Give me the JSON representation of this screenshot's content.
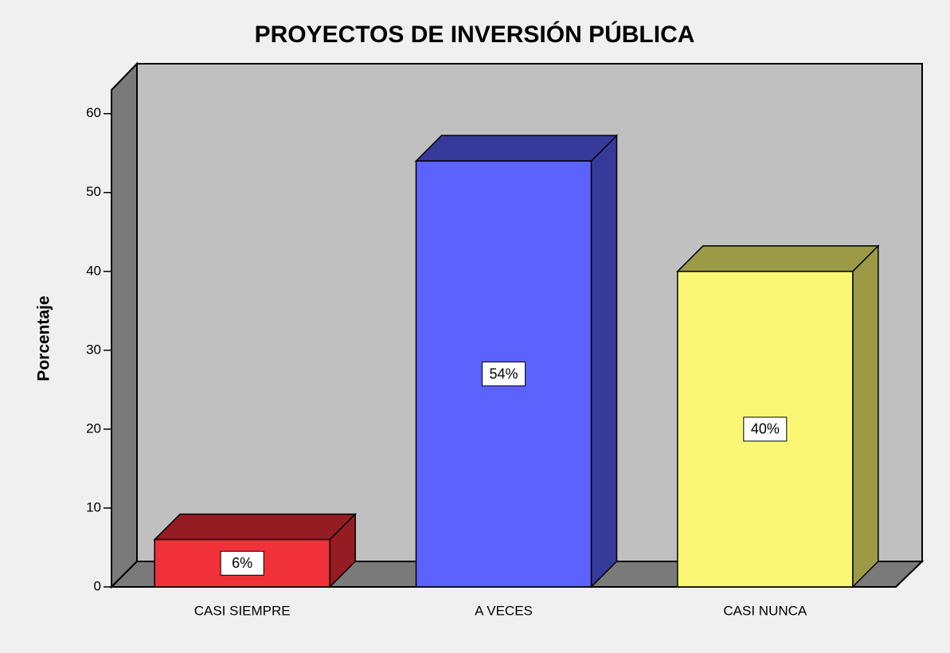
{
  "chart_data": {
    "type": "bar3d",
    "title": "PROYECTOS DE INVERSIÓN PÚBLICA",
    "y_label": "Porcentaje",
    "categories": [
      "CASI SIEMPRE",
      "A VECES",
      "CASI NUNCA"
    ],
    "values": [
      6,
      54,
      40
    ],
    "value_labels": [
      "6%",
      "54%",
      "40%"
    ],
    "colors": [
      "#f0313a",
      "#5b62fe",
      "#f9f774"
    ],
    "side_colors": [
      "#951c22",
      "#363a9b",
      "#9c9a47"
    ],
    "ylim": [
      0,
      63
    ],
    "yticks": [
      0,
      10,
      20,
      30,
      40,
      50,
      60
    ]
  }
}
